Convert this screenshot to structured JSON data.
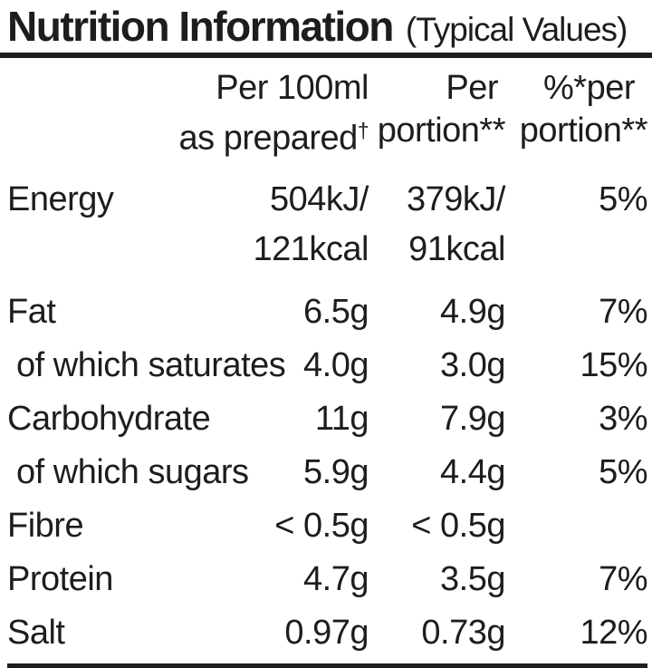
{
  "colors": {
    "text": "#1d1d1b",
    "background": "#ffffff"
  },
  "title": {
    "main": "Nutrition Information",
    "suffix": "(Typical Values)"
  },
  "table": {
    "columns": [
      {
        "line1": "Per 100ml",
        "line2": "as prepared",
        "line2_sup": "†"
      },
      {
        "line1": "Per",
        "line2": "portion**"
      },
      {
        "line1": "%*per",
        "line2": "portion**"
      }
    ],
    "rows": [
      {
        "label": "Energy",
        "per100_l1": "504kJ/",
        "per100_l2": "121kcal",
        "portion_l1": "379kJ/",
        "portion_l2": "91kcal",
        "pct": "5%"
      },
      {
        "label": "Fat",
        "per100_l1": "6.5g",
        "portion_l1": "4.9g",
        "pct": "7%"
      },
      {
        "label": "of which saturates",
        "per100_l1": "4.0g",
        "portion_l1": "3.0g",
        "pct": "15%"
      },
      {
        "label": "Carbohydrate",
        "per100_l1": "11g",
        "portion_l1": "7.9g",
        "pct": "3%"
      },
      {
        "label": "of which sugars",
        "per100_l1": "5.9g",
        "portion_l1": "4.4g",
        "pct": "5%"
      },
      {
        "label": "Fibre",
        "per100_l1": "< 0.5g",
        "portion_l1": "< 0.5g",
        "pct": ""
      },
      {
        "label": "Protein",
        "per100_l1": "4.7g",
        "portion_l1": "3.5g",
        "pct": "7%"
      },
      {
        "label": "Salt",
        "per100_l1": "0.97g",
        "portion_l1": "0.73g",
        "pct": "12%"
      }
    ]
  }
}
